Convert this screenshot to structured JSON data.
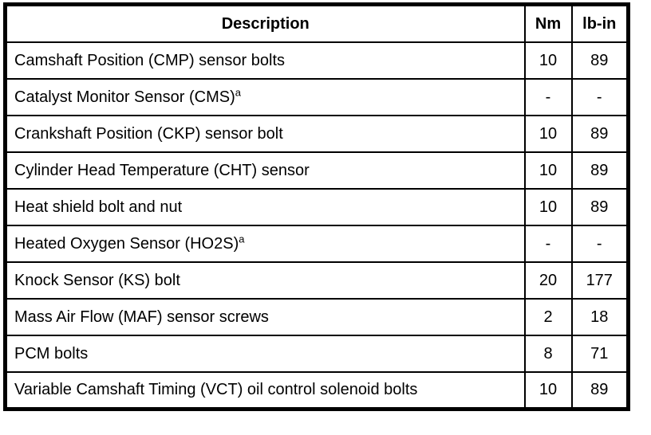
{
  "table": {
    "headers": {
      "description": "Description",
      "nm": "Nm",
      "lb_in": "lb-in"
    },
    "rows": [
      {
        "description": "Camshaft Position (CMP) sensor bolts",
        "footnote": "",
        "nm": "10",
        "lb_in": "89"
      },
      {
        "description": "Catalyst Monitor Sensor (CMS)",
        "footnote": "a",
        "nm": "-",
        "lb_in": "-"
      },
      {
        "description": "Crankshaft Position (CKP) sensor bolt",
        "footnote": "",
        "nm": "10",
        "lb_in": "89"
      },
      {
        "description": "Cylinder Head Temperature (CHT) sensor",
        "footnote": "",
        "nm": "10",
        "lb_in": "89"
      },
      {
        "description": "Heat shield bolt and nut",
        "footnote": "",
        "nm": "10",
        "lb_in": "89"
      },
      {
        "description": "Heated Oxygen Sensor (HO2S)",
        "footnote": "a",
        "nm": "-",
        "lb_in": "-"
      },
      {
        "description": "Knock Sensor (KS) bolt",
        "footnote": "",
        "nm": "20",
        "lb_in": "177"
      },
      {
        "description": "Mass Air Flow (MAF) sensor screws",
        "footnote": "",
        "nm": "2",
        "lb_in": "18"
      },
      {
        "description": "PCM bolts",
        "footnote": "",
        "nm": "8",
        "lb_in": "71"
      },
      {
        "description": "Variable Camshaft Timing (VCT) oil control solenoid bolts",
        "footnote": "",
        "nm": "10",
        "lb_in": "89"
      }
    ],
    "colors": {
      "border": "#000000",
      "text": "#000000",
      "background": "#ffffff"
    }
  }
}
